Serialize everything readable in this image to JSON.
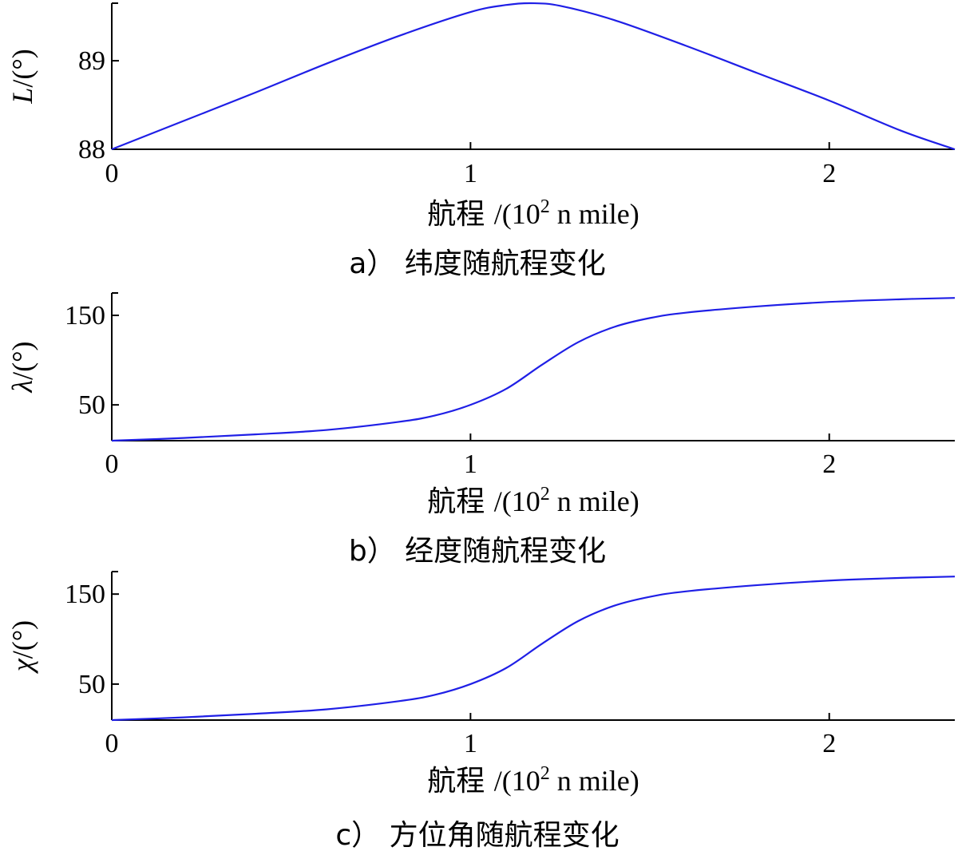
{
  "chart_data": [
    {
      "type": "line",
      "ylabel_symbol": "L",
      "ylabel_unit": "/(°)",
      "xlabel_cn": "航程",
      "xlabel_unit_pre": "/(10",
      "xlabel_unit_sup": "2",
      "xlabel_unit_post": " n mile)",
      "caption": "a） 纬度随航程变化",
      "xlim": [
        0,
        2.35
      ],
      "ylim": [
        88,
        89.65
      ],
      "xticks": [
        0,
        1,
        2
      ],
      "xtick_labels": [
        "0",
        "1",
        "2"
      ],
      "yticks": [
        88,
        89
      ],
      "ytick_labels": [
        "88",
        "89"
      ],
      "series": [
        {
          "color": "#1f1fe6",
          "x": [
            0,
            0.2,
            0.4,
            0.6,
            0.8,
            1.0,
            1.1,
            1.17,
            1.25,
            1.4,
            1.6,
            1.8,
            2.0,
            2.2,
            2.35
          ],
          "y": [
            88.0,
            88.32,
            88.64,
            88.97,
            89.28,
            89.55,
            89.63,
            89.65,
            89.62,
            89.46,
            89.17,
            88.86,
            88.55,
            88.21,
            88.0
          ]
        }
      ]
    },
    {
      "type": "line",
      "ylabel_symbol": "λ",
      "ylabel_unit": "/(°)",
      "xlabel_cn": "航程",
      "xlabel_unit_pre": "/(10",
      "xlabel_unit_sup": "2",
      "xlabel_unit_post": " n mile)",
      "caption": "b） 经度随航程变化",
      "xlim": [
        0,
        2.35
      ],
      "ylim": [
        10,
        175
      ],
      "xticks": [
        0,
        1,
        2
      ],
      "xtick_labels": [
        "0",
        "1",
        "2"
      ],
      "yticks": [
        50,
        150
      ],
      "ytick_labels": [
        "50",
        "150"
      ],
      "series": [
        {
          "color": "#1f1fe6",
          "x": [
            0,
            0.2,
            0.4,
            0.6,
            0.8,
            0.9,
            1.0,
            1.1,
            1.2,
            1.3,
            1.4,
            1.5,
            1.6,
            1.8,
            2.0,
            2.2,
            2.35
          ],
          "y": [
            10,
            13,
            17,
            22,
            31,
            38,
            50,
            68,
            95,
            120,
            137,
            147,
            153,
            160,
            165,
            168,
            169.5
          ]
        }
      ]
    },
    {
      "type": "line",
      "ylabel_symbol": "χ",
      "ylabel_unit": "/(°)",
      "xlabel_cn": "航程",
      "xlabel_unit_pre": "/(10",
      "xlabel_unit_sup": "2",
      "xlabel_unit_post": " n mile)",
      "caption": "c） 方位角随航程变化",
      "xlim": [
        0,
        2.35
      ],
      "ylim": [
        10,
        175
      ],
      "xticks": [
        0,
        1,
        2
      ],
      "xtick_labels": [
        "0",
        "1",
        "2"
      ],
      "yticks": [
        50,
        150
      ],
      "ytick_labels": [
        "50",
        "150"
      ],
      "series": [
        {
          "color": "#1f1fe6",
          "x": [
            0,
            0.2,
            0.4,
            0.6,
            0.8,
            0.9,
            1.0,
            1.1,
            1.2,
            1.3,
            1.4,
            1.5,
            1.6,
            1.8,
            2.0,
            2.2,
            2.35
          ],
          "y": [
            10,
            13,
            17,
            22,
            31,
            38,
            50,
            68,
            95,
            120,
            137,
            147,
            153,
            160,
            165,
            168,
            169.5
          ]
        }
      ]
    }
  ]
}
